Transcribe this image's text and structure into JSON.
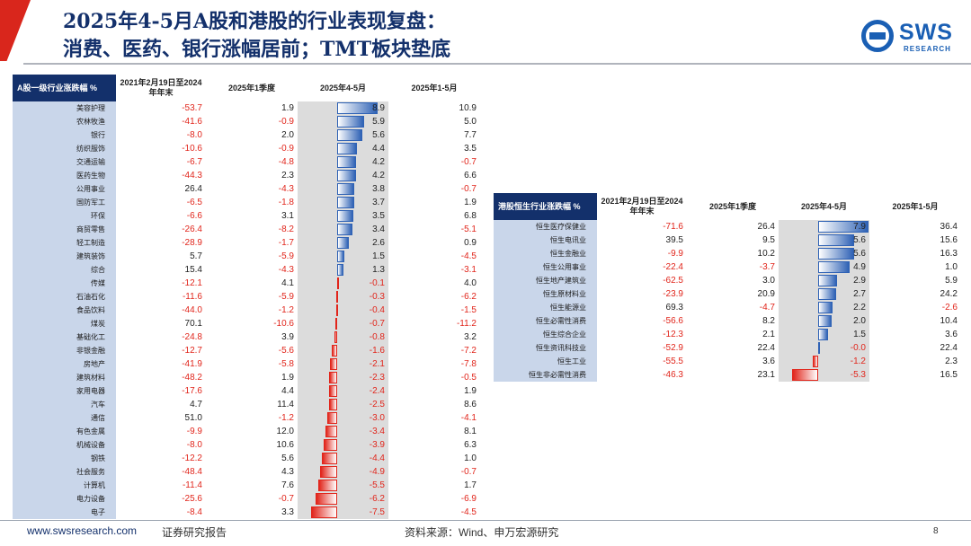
{
  "header": {
    "title_line1": "2025年4-5月A股和港股的行业表现复盘：",
    "title_line2": "消费、医药、银行涨幅居前；TMT板块垫底",
    "logo_text": "SWS",
    "logo_sub": "RESEARCH"
  },
  "colors": {
    "title": "#13306b",
    "positive_bar": "#2f62b5",
    "negative": "#e1251b",
    "name_bg": "#c9d6ea"
  },
  "table_a": {
    "columns": [
      "A股一级行业涨跌幅 %",
      "2021年2月19日至2024年年末",
      "2025年1季度",
      "2025年4-5月",
      "2025年1-5月"
    ],
    "bar_scale_max": 11.3,
    "rows": [
      {
        "name": "美容护理",
        "c1": "-53.7",
        "c2": "1.9",
        "c3": "8.9",
        "c4": "10.9"
      },
      {
        "name": "农林牧渔",
        "c1": "-41.6",
        "c2": "-0.9",
        "c3": "5.9",
        "c4": "5.0"
      },
      {
        "name": "银行",
        "c1": "-8.0",
        "c2": "2.0",
        "c3": "5.6",
        "c4": "7.7"
      },
      {
        "name": "纺织服饰",
        "c1": "-10.6",
        "c2": "-0.9",
        "c3": "4.4",
        "c4": "3.5"
      },
      {
        "name": "交通运输",
        "c1": "-6.7",
        "c2": "-4.8",
        "c3": "4.2",
        "c4": "-0.7"
      },
      {
        "name": "医药生物",
        "c1": "-44.3",
        "c2": "2.3",
        "c3": "4.2",
        "c4": "6.6"
      },
      {
        "name": "公用事业",
        "c1": "26.4",
        "c2": "-4.3",
        "c3": "3.8",
        "c4": "-0.7"
      },
      {
        "name": "国防军工",
        "c1": "-6.5",
        "c2": "-1.8",
        "c3": "3.7",
        "c4": "1.9"
      },
      {
        "name": "环保",
        "c1": "-6.6",
        "c2": "3.1",
        "c3": "3.5",
        "c4": "6.8"
      },
      {
        "name": "商贸零售",
        "c1": "-26.4",
        "c2": "-8.2",
        "c3": "3.4",
        "c4": "-5.1"
      },
      {
        "name": "轻工制造",
        "c1": "-28.9",
        "c2": "-1.7",
        "c3": "2.6",
        "c4": "0.9"
      },
      {
        "name": "建筑装饰",
        "c1": "5.7",
        "c2": "-5.9",
        "c3": "1.5",
        "c4": "-4.5"
      },
      {
        "name": "综合",
        "c1": "15.4",
        "c2": "-4.3",
        "c3": "1.3",
        "c4": "-3.1"
      },
      {
        "name": "传媒",
        "c1": "-12.1",
        "c2": "4.1",
        "c3": "-0.1",
        "c4": "4.0"
      },
      {
        "name": "石油石化",
        "c1": "-11.6",
        "c2": "-5.9",
        "c3": "-0.3",
        "c4": "-6.2"
      },
      {
        "name": "食品饮料",
        "c1": "-44.0",
        "c2": "-1.2",
        "c3": "-0.4",
        "c4": "-1.5"
      },
      {
        "name": "煤炭",
        "c1": "70.1",
        "c2": "-10.6",
        "c3": "-0.7",
        "c4": "-11.2"
      },
      {
        "name": "基础化工",
        "c1": "-24.8",
        "c2": "3.9",
        "c3": "-0.8",
        "c4": "3.2"
      },
      {
        "name": "非银金融",
        "c1": "-12.7",
        "c2": "-5.6",
        "c3": "-1.6",
        "c4": "-7.2"
      },
      {
        "name": "房地产",
        "c1": "-41.9",
        "c2": "-5.8",
        "c3": "-2.1",
        "c4": "-7.8"
      },
      {
        "name": "建筑材料",
        "c1": "-48.2",
        "c2": "1.9",
        "c3": "-2.3",
        "c4": "-0.5"
      },
      {
        "name": "家用电器",
        "c1": "-17.6",
        "c2": "4.4",
        "c3": "-2.4",
        "c4": "1.9"
      },
      {
        "name": "汽车",
        "c1": "4.7",
        "c2": "11.4",
        "c3": "-2.5",
        "c4": "8.6"
      },
      {
        "name": "通信",
        "c1": "51.0",
        "c2": "-1.2",
        "c3": "-3.0",
        "c4": "-4.1"
      },
      {
        "name": "有色金属",
        "c1": "-9.9",
        "c2": "12.0",
        "c3": "-3.4",
        "c4": "8.1"
      },
      {
        "name": "机械设备",
        "c1": "-8.0",
        "c2": "10.6",
        "c3": "-3.9",
        "c4": "6.3"
      },
      {
        "name": "钢铁",
        "c1": "-12.2",
        "c2": "5.6",
        "c3": "-4.4",
        "c4": "1.0"
      },
      {
        "name": "社会服务",
        "c1": "-48.4",
        "c2": "4.3",
        "c3": "-4.9",
        "c4": "-0.7"
      },
      {
        "name": "计算机",
        "c1": "-11.4",
        "c2": "7.6",
        "c3": "-5.5",
        "c4": "1.7"
      },
      {
        "name": "电力设备",
        "c1": "-25.6",
        "c2": "-0.7",
        "c3": "-6.2",
        "c4": "-6.9"
      },
      {
        "name": "电子",
        "c1": "-8.4",
        "c2": "3.3",
        "c3": "-7.5",
        "c4": "-4.5"
      }
    ]
  },
  "table_h": {
    "columns": [
      "港股恒生行业涨跌幅 %",
      "2021年2月19日至2024年年末",
      "2025年1季度",
      "2025年4-5月",
      "2025年1-5月"
    ],
    "bar_scale_max": 8.0,
    "rows": [
      {
        "name": "恒生医疗保健业",
        "c1": "-71.6",
        "c2": "26.4",
        "c3": "7.9",
        "c4": "36.4"
      },
      {
        "name": "恒生电讯业",
        "c1": "39.5",
        "c2": "9.5",
        "c3": "5.6",
        "c4": "15.6"
      },
      {
        "name": "恒生金融业",
        "c1": "-9.9",
        "c2": "10.2",
        "c3": "5.6",
        "c4": "16.3"
      },
      {
        "name": "恒生公用事业",
        "c1": "-22.4",
        "c2": "-3.7",
        "c3": "4.9",
        "c4": "1.0"
      },
      {
        "name": "恒生地产建筑业",
        "c1": "-62.5",
        "c2": "3.0",
        "c3": "2.9",
        "c4": "5.9"
      },
      {
        "name": "恒生原材料业",
        "c1": "-23.9",
        "c2": "20.9",
        "c3": "2.7",
        "c4": "24.2"
      },
      {
        "name": "恒生能源业",
        "c1": "69.3",
        "c2": "-4.7",
        "c3": "2.2",
        "c4": "-2.6"
      },
      {
        "name": "恒生必需性消费",
        "c1": "-56.6",
        "c2": "8.2",
        "c3": "2.0",
        "c4": "10.4"
      },
      {
        "name": "恒生综合企业",
        "c1": "-12.3",
        "c2": "2.1",
        "c3": "1.5",
        "c4": "3.6"
      },
      {
        "name": "恒生资讯科技业",
        "c1": "-52.9",
        "c2": "22.4",
        "c3": "-0.0",
        "c4": "22.4"
      },
      {
        "name": "恒生工业",
        "c1": "-55.5",
        "c2": "3.6",
        "c3": "-1.2",
        "c4": "2.3"
      },
      {
        "name": "恒生非必需性消费",
        "c1": "-46.3",
        "c2": "23.1",
        "c3": "-5.3",
        "c4": "16.5"
      }
    ]
  },
  "footer": {
    "url": "www.swsresearch.com",
    "report_type": "证券研究报告",
    "source": "资料来源：Wind、申万宏源研究",
    "page": "8"
  }
}
